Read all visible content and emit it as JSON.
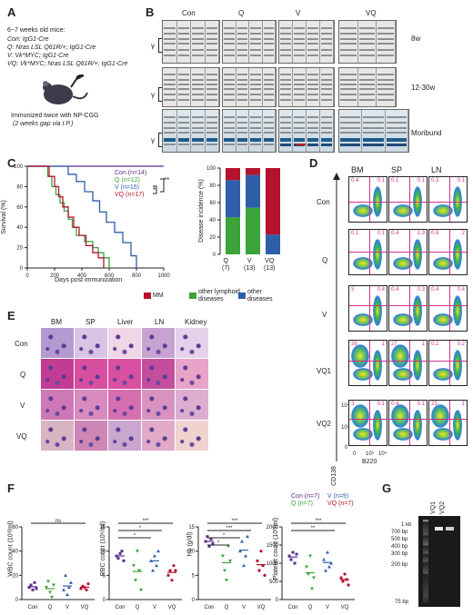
{
  "panels": {
    "A": {
      "label": "A",
      "title": "6~7 weeks old mice:",
      "genotypes": [
        "Con: IgG1-Cre",
        "Q: Nras LSL Q61R/+; IgG1-Cre",
        "V: Vk*MYC; IgG1-Cre",
        "VQ: Vk*MYC; Nras LSL Q61R/+; IgG1-Cre"
      ],
      "immunized": "Immunized twice with NP-CGG",
      "gap": "(2 weeks gap via I.P.)"
    },
    "B": {
      "label": "B",
      "columns": [
        "Con",
        "Q",
        "V",
        "VQ"
      ],
      "rows": [
        "8w",
        "12-30w",
        "Moribund"
      ],
      "gamma": "γ"
    },
    "C": {
      "label": "C",
      "ylabel": "Survival (%)",
      "xlabel": "Days post immunization",
      "legend": [
        "Con (n=14)",
        "Q (n=12)",
        "V (n=16)",
        "VQ (n=17)"
      ],
      "sig": [
        "**",
        "*",
        "*"
      ],
      "bar_ylabel": "Disease incidence (%)",
      "bar_xlabels": [
        "Q\n(7)",
        "V\n(13)",
        "VQ\n(13)"
      ],
      "bar_legend": [
        "MM",
        "other lymphoid diseases",
        "other diseases"
      ]
    },
    "D": {
      "label": "D",
      "columns": [
        "BM",
        "SP",
        "LN"
      ],
      "rows": [
        "Con",
        "Q",
        "V",
        "VQ1",
        "VQ2"
      ],
      "xaxis": "B220",
      "yaxis": "CD138",
      "ticks_x": [
        "0",
        "10³",
        "10⁴"
      ],
      "ticks_y": [
        "10⁴",
        "10³",
        "0"
      ],
      "values": [
        [
          [
            "0.4",
            "0.1"
          ],
          [
            "0.1",
            "0.1"
          ],
          [
            "0.3",
            "0.1"
          ]
        ],
        [
          [
            "0.1",
            "0.1"
          ],
          [
            "0.4",
            "1.3"
          ],
          [
            "0.6",
            "2"
          ]
        ],
        [
          [
            "3",
            "0.4"
          ],
          [
            "0.4",
            "0.3"
          ],
          [
            "0.4",
            "0.4"
          ]
        ],
        [
          [
            "39",
            "1"
          ],
          [
            "27",
            "1"
          ],
          [
            "0.2",
            "0.2"
          ]
        ],
        [
          [
            "3",
            "0.1"
          ],
          [
            "0.4",
            "0.1"
          ],
          [
            "23",
            "1"
          ]
        ]
      ]
    },
    "E": {
      "label": "E",
      "columns": [
        "BM",
        "SP",
        "Liver",
        "LN",
        "Kidney"
      ],
      "rows": [
        "Con",
        "Q",
        "V",
        "VQ"
      ],
      "scalebar": "40 μm"
    },
    "F": {
      "label": "F",
      "plots": [
        {
          "ylabel": "WBC count (10³/ml)",
          "ticks": [
            "60",
            "40",
            "20",
            "0"
          ],
          "sig": [
            "ns"
          ]
        },
        {
          "ylabel": "RBC count (10⁶/ml)",
          "ticks": [
            "15",
            "10",
            "5",
            "0"
          ],
          "sig": [
            "***",
            "*",
            "*"
          ]
        },
        {
          "ylabel": "Hb (g/dl)",
          "ticks": [
            "15",
            "10",
            "5",
            "0"
          ],
          "sig": [
            "***",
            "***",
            "*",
            "*"
          ]
        },
        {
          "ylabel": "Platelet count (10³/ml)",
          "ticks": [
            "2000",
            "1500",
            "1000",
            "500",
            "0"
          ],
          "sig": [
            "***",
            "**"
          ]
        }
      ],
      "groups": [
        "Con",
        "Q",
        "V",
        "VQ"
      ],
      "legend": [
        "Con (n=7)",
        "V (n=9)",
        "Q (n=7)",
        "VQ (n=7)"
      ]
    },
    "G": {
      "label": "G",
      "lanes": [
        "VQ1",
        "VQ2"
      ],
      "ladder": [
        "1 kb",
        "700 bp",
        "500 bp",
        "400 bp",
        "300 bp",
        "200 bp",
        "75 bp"
      ]
    }
  },
  "colors": {
    "Con": "#5b2d8e",
    "Q": "#3aa33a",
    "V": "#2f5ea8",
    "VQ": "#b5122e",
    "gate": "#d03090"
  },
  "chart_data": [
    {
      "type": "line",
      "title": "",
      "xlabel": "Days post immunization",
      "ylabel": "Survival (%)",
      "xlim": [
        0,
        1000
      ],
      "ylim": [
        0,
        100
      ],
      "series": [
        {
          "name": "Con (n=14)",
          "x": [
            0,
            1000
          ],
          "y": [
            100,
            100
          ]
        },
        {
          "name": "Q (n=12)",
          "x": [
            0,
            150,
            180,
            210,
            240,
            270,
            300,
            330,
            360,
            420,
            480,
            520,
            560,
            600
          ],
          "y": [
            100,
            90,
            80,
            72,
            64,
            56,
            48,
            40,
            32,
            26,
            20,
            15,
            10,
            0
          ]
        },
        {
          "name": "V (n=16)",
          "x": [
            0,
            300,
            360,
            420,
            480,
            530,
            580,
            640,
            700,
            760,
            800
          ],
          "y": [
            100,
            92,
            85,
            75,
            66,
            55,
            45,
            35,
            25,
            12,
            0
          ]
        },
        {
          "name": "VQ (n=17)",
          "x": [
            0,
            160,
            200,
            230,
            260,
            300,
            340,
            380,
            430,
            480,
            520,
            560
          ],
          "y": [
            100,
            90,
            80,
            70,
            60,
            50,
            40,
            32,
            22,
            15,
            10,
            0
          ]
        }
      ]
    },
    {
      "type": "bar",
      "title": "",
      "ylabel": "Disease incidence (%)",
      "categories": [
        "Q (7)",
        "V (13)",
        "VQ (13)"
      ],
      "ylim": [
        0,
        100
      ],
      "series": [
        {
          "name": "other lymphoid diseases",
          "values": [
            43,
            54,
            0
          ]
        },
        {
          "name": "other diseases",
          "values": [
            43,
            38,
            23
          ]
        },
        {
          "name": "MM",
          "values": [
            14,
            8,
            77
          ]
        }
      ]
    }
  ]
}
